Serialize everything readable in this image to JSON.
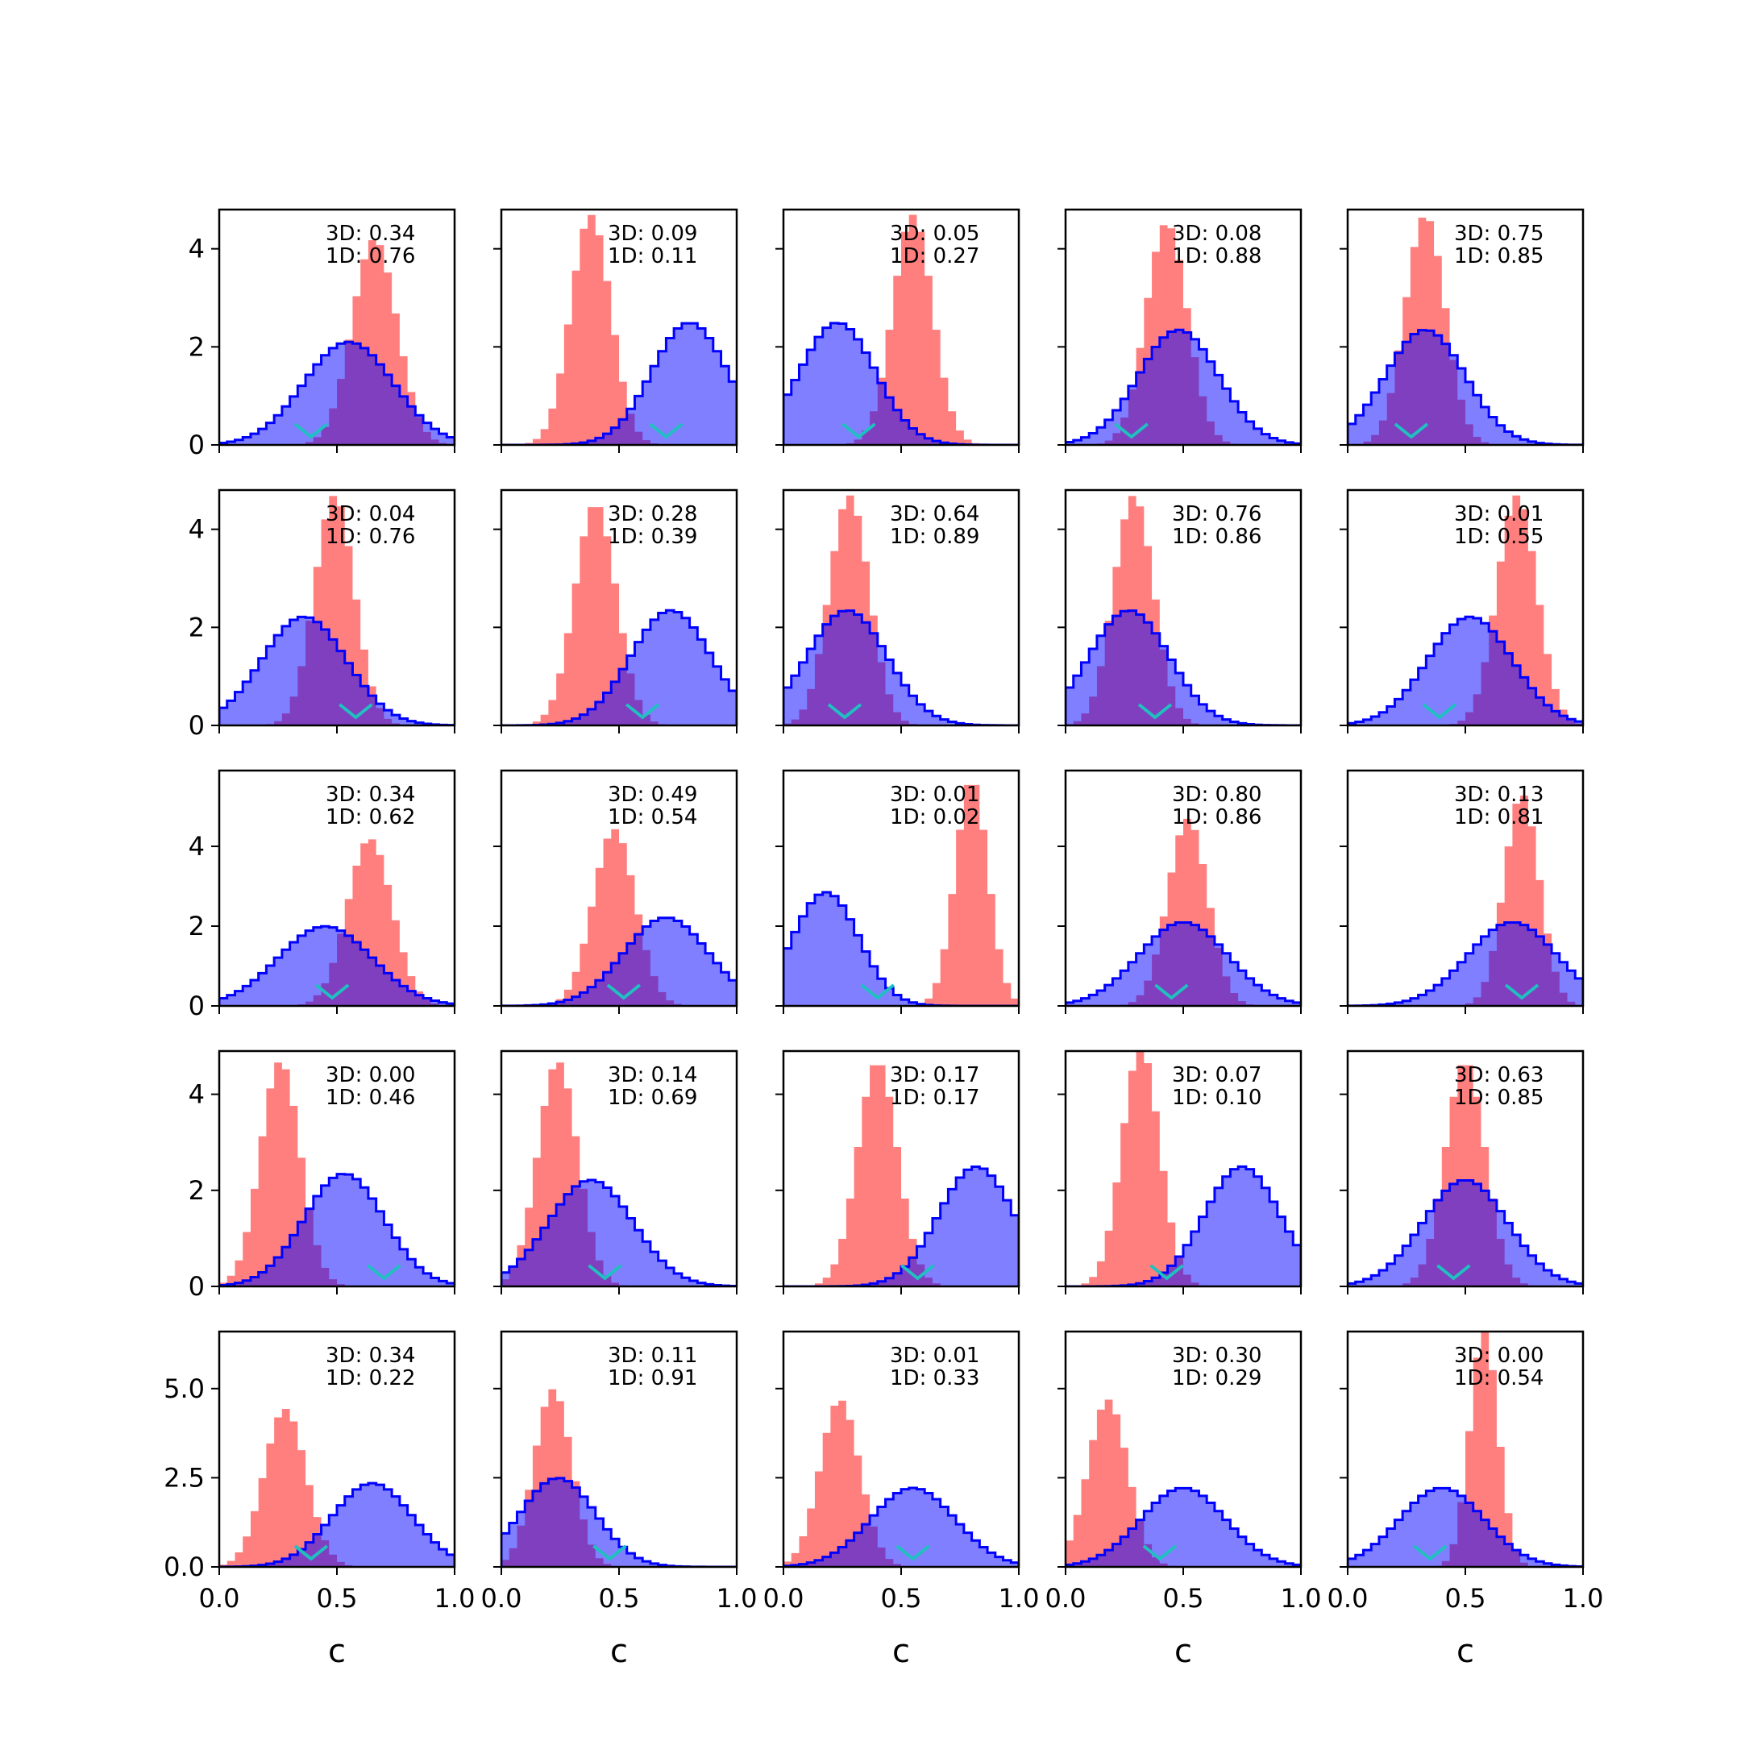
{
  "colors": {
    "red": "#ff0000",
    "blue": "#0000ff",
    "cyan": "#20c0c0"
  },
  "chart_data": {
    "type": "histogram-grid",
    "xlabel": "c",
    "x_ticks": [
      "0.0",
      "0.5",
      "1.0"
    ],
    "xlim": [
      0,
      1
    ],
    "rows": [
      {
        "ylim": [
          0,
          4.8
        ],
        "y_ticks": [
          {
            "v": 0,
            "t": "0"
          },
          {
            "v": 2,
            "t": "2"
          },
          {
            "v": 4,
            "t": "4"
          }
        ]
      },
      {
        "ylim": [
          0,
          4.8
        ],
        "y_ticks": [
          {
            "v": 0,
            "t": "0"
          },
          {
            "v": 2,
            "t": "2"
          },
          {
            "v": 4,
            "t": "4"
          }
        ]
      },
      {
        "ylim": [
          0,
          5.9
        ],
        "y_ticks": [
          {
            "v": 0,
            "t": "0"
          },
          {
            "v": 2,
            "t": "2"
          },
          {
            "v": 4,
            "t": "4"
          }
        ]
      },
      {
        "ylim": [
          0,
          4.9
        ],
        "y_ticks": [
          {
            "v": 0,
            "t": "0"
          },
          {
            "v": 2,
            "t": "2"
          },
          {
            "v": 4,
            "t": "4"
          }
        ]
      },
      {
        "ylim": [
          0,
          6.6
        ],
        "y_ticks": [
          {
            "v": 0,
            "t": "0.0"
          },
          {
            "v": 2.5,
            "t": "2.5"
          },
          {
            "v": 5,
            "t": "5.0"
          }
        ]
      }
    ],
    "panels": [
      {
        "label3d": "3D: 0.34",
        "label1d": "1D: 0.76",
        "red": {
          "mu": 0.66,
          "sd": 0.095
        },
        "blue": {
          "mu": 0.55,
          "sd": 0.19
        },
        "marker": 0.39
      },
      {
        "label3d": "3D: 0.09",
        "label1d": "1D: 0.11",
        "red": {
          "mu": 0.38,
          "sd": 0.085
        },
        "blue": {
          "mu": 0.8,
          "sd": 0.16
        },
        "marker": 0.7
      },
      {
        "label3d": "3D: 0.05",
        "label1d": "1D: 0.27",
        "red": {
          "mu": 0.55,
          "sd": 0.085
        },
        "blue": {
          "mu": 0.23,
          "sd": 0.16
        },
        "marker": 0.32
      },
      {
        "label3d": "3D: 0.08",
        "label1d": "1D: 0.88",
        "red": {
          "mu": 0.43,
          "sd": 0.088
        },
        "blue": {
          "mu": 0.48,
          "sd": 0.17
        },
        "marker": 0.28
      },
      {
        "label3d": "3D: 0.75",
        "label1d": "1D: 0.85",
        "red": {
          "mu": 0.33,
          "sd": 0.085
        },
        "blue": {
          "mu": 0.33,
          "sd": 0.17
        },
        "marker": 0.27
      },
      {
        "label3d": "3D: 0.04",
        "label1d": "1D: 0.76",
        "red": {
          "mu": 0.49,
          "sd": 0.085
        },
        "blue": {
          "mu": 0.36,
          "sd": 0.18
        },
        "marker": 0.58
      },
      {
        "label3d": "3D: 0.28",
        "label1d": "1D: 0.39",
        "red": {
          "mu": 0.4,
          "sd": 0.088
        },
        "blue": {
          "mu": 0.72,
          "sd": 0.17
        },
        "marker": 0.6
      },
      {
        "label3d": "3D: 0.64",
        "label1d": "1D: 0.89",
        "red": {
          "mu": 0.28,
          "sd": 0.085
        },
        "blue": {
          "mu": 0.27,
          "sd": 0.17
        },
        "marker": 0.26
      },
      {
        "label3d": "3D: 0.76",
        "label1d": "1D: 0.86",
        "red": {
          "mu": 0.29,
          "sd": 0.085
        },
        "blue": {
          "mu": 0.27,
          "sd": 0.17
        },
        "marker": 0.38
      },
      {
        "label3d": "3D: 0.01",
        "label1d": "1D: 0.55",
        "red": {
          "mu": 0.72,
          "sd": 0.085
        },
        "blue": {
          "mu": 0.52,
          "sd": 0.18
        },
        "marker": 0.39
      },
      {
        "label3d": "3D: 0.34",
        "label1d": "1D: 0.62",
        "red": {
          "mu": 0.64,
          "sd": 0.095
        },
        "blue": {
          "mu": 0.45,
          "sd": 0.2
        },
        "marker": 0.48
      },
      {
        "label3d": "3D: 0.49",
        "label1d": "1D: 0.54",
        "red": {
          "mu": 0.48,
          "sd": 0.09
        },
        "blue": {
          "mu": 0.7,
          "sd": 0.18
        },
        "marker": 0.52
      },
      {
        "label3d": "3D: 0.01",
        "label1d": "1D: 0.02",
        "red": {
          "mu": 0.8,
          "sd": 0.07
        },
        "blue": {
          "mu": 0.18,
          "sd": 0.14
        },
        "marker": 0.4
      },
      {
        "label3d": "3D: 0.80",
        "label1d": "1D: 0.86",
        "red": {
          "mu": 0.52,
          "sd": 0.085
        },
        "blue": {
          "mu": 0.5,
          "sd": 0.19
        },
        "marker": 0.45
      },
      {
        "label3d": "3D: 0.13",
        "label1d": "1D: 0.81",
        "red": {
          "mu": 0.74,
          "sd": 0.075
        },
        "blue": {
          "mu": 0.7,
          "sd": 0.19
        },
        "marker": 0.74
      },
      {
        "label3d": "3D: 0.00",
        "label1d": "1D: 0.46",
        "red": {
          "mu": 0.26,
          "sd": 0.085
        },
        "blue": {
          "mu": 0.53,
          "sd": 0.17
        },
        "marker": 0.7
      },
      {
        "label3d": "3D: 0.14",
        "label1d": "1D: 0.69",
        "red": {
          "mu": 0.24,
          "sd": 0.085
        },
        "blue": {
          "mu": 0.38,
          "sd": 0.18
        },
        "marker": 0.44
      },
      {
        "label3d": "3D: 0.17",
        "label1d": "1D: 0.17",
        "red": {
          "mu": 0.4,
          "sd": 0.085
        },
        "blue": {
          "mu": 0.82,
          "sd": 0.16
        },
        "marker": 0.57
      },
      {
        "label3d": "3D: 0.07",
        "label1d": "1D: 0.10",
        "red": {
          "mu": 0.32,
          "sd": 0.08
        },
        "blue": {
          "mu": 0.75,
          "sd": 0.16
        },
        "marker": 0.43
      },
      {
        "label3d": "3D: 0.63",
        "label1d": "1D: 0.85",
        "red": {
          "mu": 0.5,
          "sd": 0.085
        },
        "blue": {
          "mu": 0.5,
          "sd": 0.18
        },
        "marker": 0.45
      },
      {
        "label3d": "3D: 0.34",
        "label1d": "1D: 0.22",
        "red": {
          "mu": 0.28,
          "sd": 0.09
        },
        "blue": {
          "mu": 0.65,
          "sd": 0.17
        },
        "marker": 0.39
      },
      {
        "label3d": "3D: 0.11",
        "label1d": "1D: 0.91",
        "red": {
          "mu": 0.22,
          "sd": 0.08
        },
        "blue": {
          "mu": 0.24,
          "sd": 0.16
        },
        "marker": 0.46
      },
      {
        "label3d": "3D: 0.01",
        "label1d": "1D: 0.33",
        "red": {
          "mu": 0.24,
          "sd": 0.085
        },
        "blue": {
          "mu": 0.55,
          "sd": 0.18
        },
        "marker": 0.55
      },
      {
        "label3d": "3D: 0.30",
        "label1d": "1D: 0.29",
        "red": {
          "mu": 0.18,
          "sd": 0.085
        },
        "blue": {
          "mu": 0.5,
          "sd": 0.18
        },
        "marker": 0.4
      },
      {
        "label3d": "3D: 0.00",
        "label1d": "1D: 0.54",
        "red": {
          "mu": 0.58,
          "sd": 0.06
        },
        "blue": {
          "mu": 0.4,
          "sd": 0.18
        },
        "marker": 0.35
      }
    ]
  }
}
